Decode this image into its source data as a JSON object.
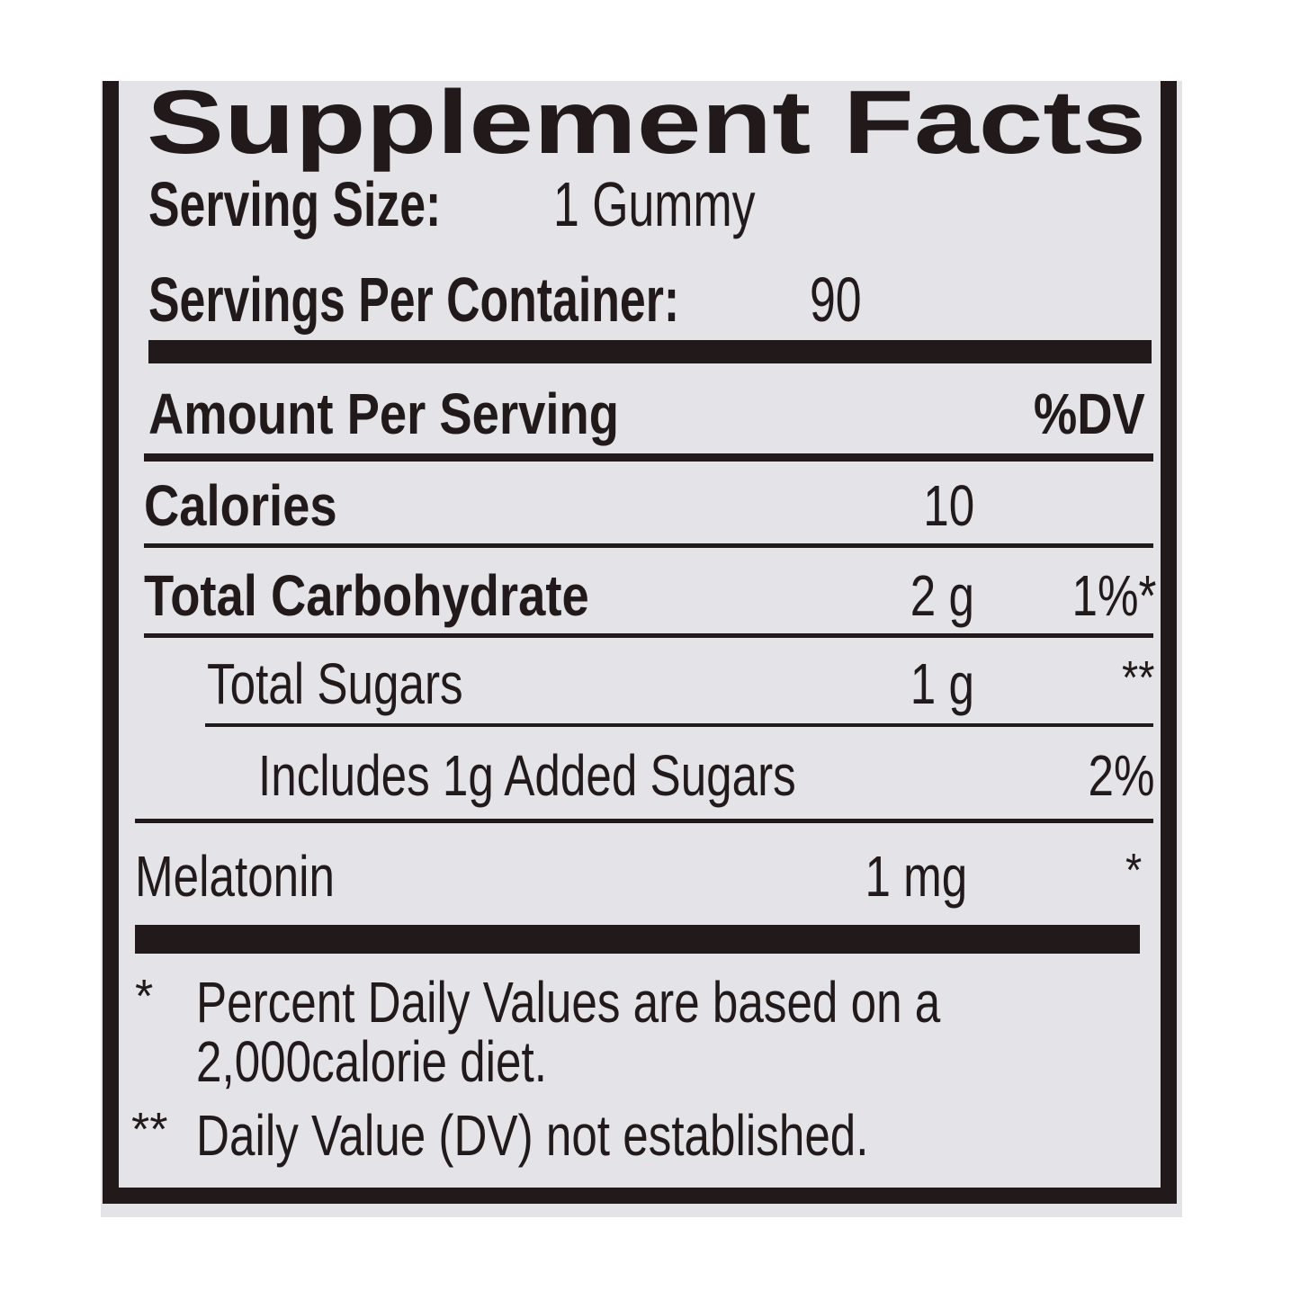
{
  "title": "Supplement Facts",
  "serving_size": {
    "label": "Serving Size:",
    "value": "1 Gummy"
  },
  "servings_per_container": {
    "label": "Servings Per Container:",
    "value": "90"
  },
  "header": {
    "amount_label": "Amount Per Serving",
    "dv_label": "%DV"
  },
  "rows": [
    {
      "name": "Calories",
      "amount": "10",
      "dv": ""
    },
    {
      "name": "Total Carbohydrate",
      "amount": "2 g",
      "dv": "1%*"
    },
    {
      "name": "Total Sugars",
      "amount": "1 g",
      "dv": "**"
    },
    {
      "name": "Includes 1g Added Sugars",
      "amount": "",
      "dv": "2%"
    },
    {
      "name": "Melatonin",
      "amount": "1 mg",
      "dv": "*"
    }
  ],
  "footnotes": [
    {
      "mark": "*",
      "line1": "Percent Daily Values are based on a",
      "line2": "2,000calorie diet."
    },
    {
      "mark": "**",
      "line1": "Daily Value (DV) not established."
    }
  ],
  "colors": {
    "ink": "#221a1a",
    "label_background": "#e3e3e8"
  }
}
